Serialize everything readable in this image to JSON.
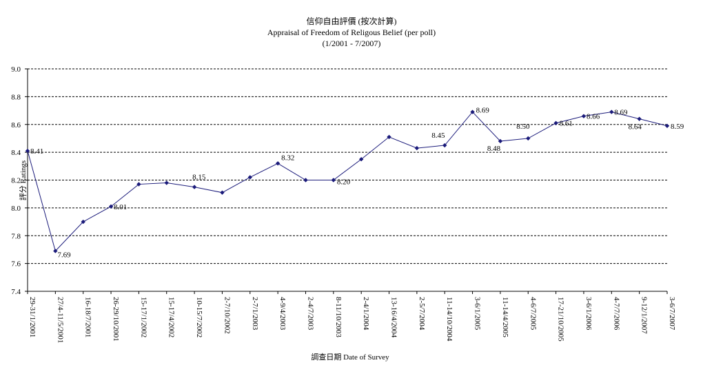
{
  "chart_data": {
    "type": "line",
    "title": "信仰自由評價 (按次計算)",
    "subtitle": "Appraisal of Freedom of Religous Belief (per poll)",
    "period": "(1/2001 - 7/2007)",
    "xlabel": "調查日期 Date of Survey",
    "ylabel": "評分 Ratings",
    "ylim": [
      7.4,
      9.0
    ],
    "yticks": [
      "7.4",
      "7.6",
      "7.8",
      "8.0",
      "8.2",
      "8.4",
      "8.6",
      "8.8",
      "9.0"
    ],
    "grid": "horizontal dashed",
    "legend": "none",
    "line_color": "#1a1a7a",
    "categories": [
      "29-31/1/2001",
      "27/4-11/5/2001",
      "16-18/7/2001",
      "26-29/10/2001",
      "15-17/1/2002",
      "15-17/4/2002",
      "10-15/7/2002",
      "2-7/10/2002",
      "2-7/1/2003",
      "4-9/4/2003",
      "2-4/7/2003",
      "8-11/10/2003",
      "2-4/1/2004",
      "13-16/4/2004",
      "2-5/7/2004",
      "11-14/10/2004",
      "3-6/1/2005",
      "11-14/4/2005",
      "4-6/7/2005",
      "17-21/10/2005",
      "3-6/1/2006",
      "4-7/7/2006",
      "9-12/1/2007",
      "3-6/7/2007"
    ],
    "values": [
      8.41,
      7.69,
      7.9,
      8.01,
      8.17,
      8.18,
      8.15,
      8.11,
      8.22,
      8.32,
      8.2,
      8.2,
      8.35,
      8.51,
      8.43,
      8.45,
      8.69,
      8.48,
      8.5,
      8.61,
      8.66,
      8.69,
      8.64,
      8.59
    ],
    "data_labels": [
      {
        "index": 0,
        "text": "8.41"
      },
      {
        "index": 1,
        "text": "7.69"
      },
      {
        "index": 3,
        "text": "8.01"
      },
      {
        "index": 6,
        "text": "8.15"
      },
      {
        "index": 9,
        "text": "8.32"
      },
      {
        "index": 11,
        "text": "8.20"
      },
      {
        "index": 15,
        "text": "8.45"
      },
      {
        "index": 16,
        "text": "8.69"
      },
      {
        "index": 17,
        "text": "8.48"
      },
      {
        "index": 18,
        "text": "8.50"
      },
      {
        "index": 19,
        "text": "8.61"
      },
      {
        "index": 20,
        "text": "8.66"
      },
      {
        "index": 21,
        "text": "8.69"
      },
      {
        "index": 22,
        "text": "8.64"
      },
      {
        "index": 23,
        "text": "8.59"
      }
    ]
  }
}
